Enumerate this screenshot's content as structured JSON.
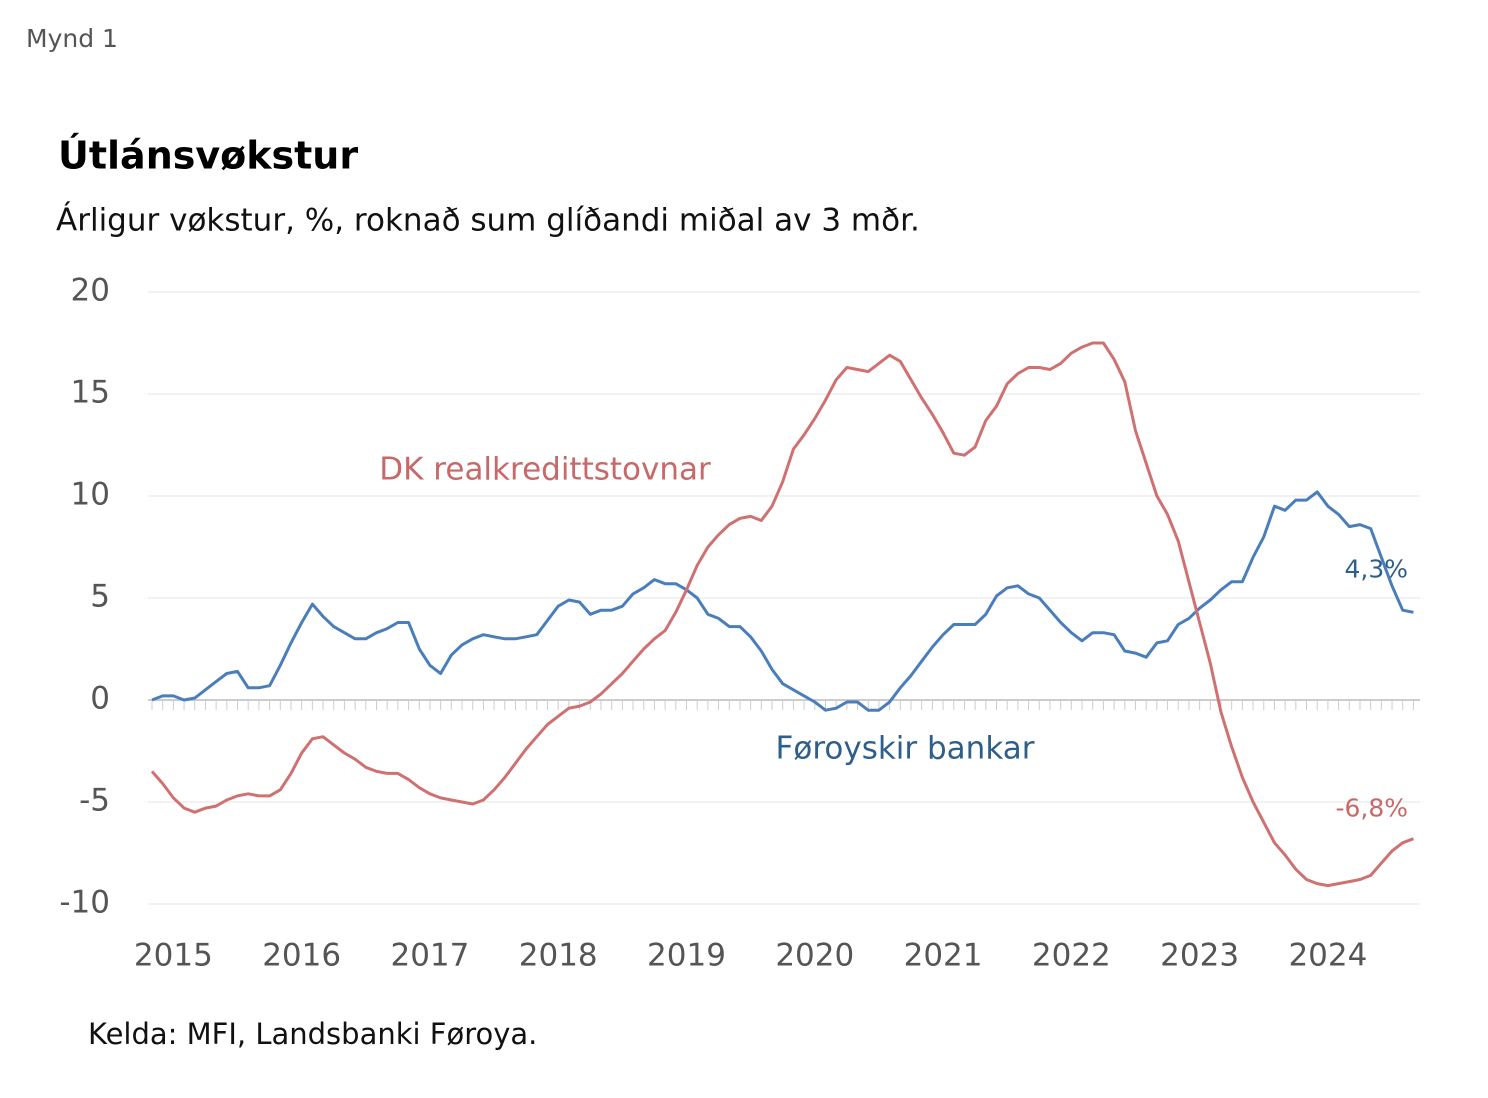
{
  "header": "Mynd 1",
  "source": "Kelda: MFI, Landsbanki Føroya.",
  "chart_data": {
    "type": "line",
    "title": "Útlánsvøkstur",
    "subtitle": "Árligur vøkstur, %, roknað sum glíðandi miðal av 3 mðr.",
    "categories": [
      null,
      null,
      "2015",
      null,
      null,
      null,
      null,
      null,
      null,
      null,
      null,
      null,
      null,
      null,
      "2016",
      null,
      null,
      null,
      null,
      null,
      null,
      null,
      null,
      null,
      null,
      null,
      "2017",
      null,
      null,
      null,
      null,
      null,
      null,
      null,
      null,
      null,
      null,
      null,
      "2018",
      null,
      null,
      null,
      null,
      null,
      null,
      null,
      null,
      null,
      null,
      null,
      "2019",
      null,
      null,
      null,
      null,
      null,
      null,
      null,
      null,
      null,
      null,
      null,
      "2020",
      null,
      null,
      null,
      null,
      null,
      null,
      null,
      null,
      null,
      null,
      null,
      "2021",
      null,
      null,
      null,
      null,
      null,
      null,
      null,
      null,
      null,
      null,
      null,
      "2022",
      null,
      null,
      null,
      null,
      null,
      null,
      null,
      null,
      null,
      null,
      null,
      "2023",
      null,
      null,
      null,
      null,
      null,
      null,
      null,
      null,
      null,
      null,
      null,
      "2024",
      null,
      null,
      null,
      null,
      null,
      null,
      null,
      null
    ],
    "series": [
      {
        "name": "Føroyskir bankar",
        "color": "#4a7ebb",
        "values": [
          0,
          0.2,
          0.2,
          0,
          0.1,
          0.5,
          0.9,
          1.3,
          1.4,
          0.6,
          0.6,
          0.7,
          1.7,
          2.8,
          3.8,
          4.7,
          4.1,
          3.6,
          3.3,
          3.0,
          3.0,
          3.3,
          3.5,
          3.8,
          3.8,
          2.5,
          1.7,
          1.3,
          2.2,
          2.7,
          3.0,
          3.2,
          3.1,
          3.0,
          3.0,
          3.1,
          3.2,
          3.9,
          4.6,
          4.9,
          4.8,
          4.2,
          4.4,
          4.4,
          4.6,
          5.2,
          5.5,
          5.9,
          5.7,
          5.7,
          5.4,
          5.0,
          4.2,
          4.0,
          3.6,
          3.6,
          3.1,
          2.4,
          1.5,
          0.8,
          0.5,
          0.2,
          -0.1,
          -0.5,
          -0.4,
          -0.1,
          -0.1,
          -0.5,
          -0.5,
          -0.1,
          0.6,
          1.2,
          1.9,
          2.6,
          3.2,
          3.7,
          3.7,
          3.7,
          4.2,
          5.1,
          5.5,
          5.6,
          5.2,
          5.0,
          4.4,
          3.8,
          3.3,
          2.9,
          3.3,
          3.3,
          3.2,
          2.4,
          2.3,
          2.1,
          2.8,
          2.9,
          3.7,
          4.0,
          4.5,
          4.9,
          5.4,
          5.8,
          5.8,
          7.0,
          8.0,
          9.5,
          9.3,
          9.8,
          9.8,
          10.2,
          9.5,
          9.1,
          8.5,
          8.6,
          8.4,
          7.0,
          5.6,
          4.4,
          4.3
        ],
        "value_labels": [
          null,
          null,
          null,
          null,
          null,
          null,
          null,
          null,
          null,
          null,
          null,
          null,
          null,
          null,
          null,
          null,
          null,
          null,
          null,
          null,
          null,
          null,
          null,
          null,
          null,
          null,
          null,
          null,
          null,
          null,
          null,
          null,
          null,
          null,
          null,
          null,
          null,
          null,
          null,
          null,
          null,
          null,
          null,
          null,
          null,
          null,
          null,
          null,
          null,
          null,
          null,
          null,
          null,
          null,
          null,
          null,
          null,
          null,
          null,
          null,
          null,
          null,
          null,
          null,
          null,
          null,
          null,
          null,
          null,
          null,
          null,
          null,
          null,
          null,
          null,
          null,
          null,
          null,
          null,
          null,
          null,
          null,
          null,
          null,
          null,
          null,
          null,
          null,
          null,
          null,
          null,
          null,
          null,
          null,
          null,
          null,
          null,
          null,
          null,
          null,
          null,
          null,
          null,
          null,
          null,
          null,
          null,
          null,
          null,
          null,
          null,
          null,
          null,
          null,
          null,
          null,
          null,
          null,
          "4,3%"
        ]
      },
      {
        "name": "DK realkredittstovnar",
        "color": "#cf7171",
        "values": [
          -3.5,
          -4.1,
          -4.8,
          -5.3,
          -5.5,
          -5.3,
          -5.2,
          -4.9,
          -4.7,
          -4.6,
          -4.7,
          -4.7,
          -4.4,
          -3.6,
          -2.6,
          -1.9,
          -1.8,
          -2.2,
          -2.6,
          -2.9,
          -3.3,
          -3.5,
          -3.6,
          -3.6,
          -3.9,
          -4.3,
          -4.6,
          -4.8,
          -4.9,
          -5.0,
          -5.1,
          -4.9,
          -4.4,
          -3.8,
          -3.1,
          -2.4,
          -1.8,
          -1.2,
          -0.8,
          -0.4,
          -0.3,
          -0.1,
          0.3,
          0.8,
          1.3,
          1.9,
          2.5,
          3.0,
          3.4,
          4.3,
          5.4,
          6.6,
          7.5,
          8.1,
          8.6,
          8.9,
          9.0,
          8.8,
          9.5,
          10.7,
          12.3,
          13.0,
          13.8,
          14.7,
          15.7,
          16.3,
          16.2,
          16.1,
          16.5,
          16.9,
          16.6,
          15.7,
          14.8,
          14.0,
          13.1,
          12.1,
          12.0,
          12.4,
          13.7,
          14.4,
          15.5,
          16.0,
          16.3,
          16.3,
          16.2,
          16.5,
          17.0,
          17.3,
          17.5,
          17.5,
          16.7,
          15.6,
          13.2,
          11.6,
          10.0,
          9.1,
          7.8,
          5.8,
          3.8,
          1.8,
          -0.6,
          -2.3,
          -3.8,
          -5.0,
          -6.0,
          -7.0,
          -7.6,
          -8.3,
          -8.8,
          -9.0,
          -9.1,
          -9.0,
          -8.9,
          -8.8,
          -8.6,
          -8.0,
          -7.4,
          -7.0,
          -6.8
        ],
        "value_labels": [
          null,
          null,
          null,
          null,
          null,
          null,
          null,
          null,
          null,
          null,
          null,
          null,
          null,
          null,
          null,
          null,
          null,
          null,
          null,
          null,
          null,
          null,
          null,
          null,
          null,
          null,
          null,
          null,
          null,
          null,
          null,
          null,
          null,
          null,
          null,
          null,
          null,
          null,
          null,
          null,
          null,
          null,
          null,
          null,
          null,
          null,
          null,
          null,
          null,
          null,
          null,
          null,
          null,
          null,
          null,
          null,
          null,
          null,
          null,
          null,
          null,
          null,
          null,
          null,
          null,
          null,
          null,
          null,
          null,
          null,
          null,
          null,
          null,
          null,
          null,
          null,
          null,
          null,
          null,
          null,
          null,
          null,
          null,
          null,
          null,
          null,
          null,
          null,
          null,
          null,
          null,
          null,
          null,
          null,
          null,
          null,
          null,
          null,
          null,
          null,
          null,
          null,
          null,
          null,
          null,
          null,
          null,
          null,
          null,
          null,
          null,
          null,
          null,
          null,
          null,
          null,
          null,
          null,
          "-6,8%"
        ]
      }
    ],
    "ylim": [
      -11,
      20.5
    ],
    "yticks": [
      -10,
      -5,
      0,
      5,
      10,
      15,
      20
    ],
    "grid": true
  }
}
